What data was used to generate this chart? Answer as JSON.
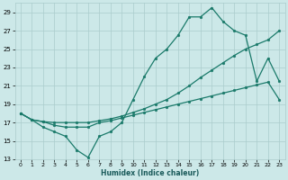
{
  "xlabel": "Humidex (Indice chaleur)",
  "bg_color": "#cce8e8",
  "grid_color": "#aacccc",
  "line_color": "#1a7a6a",
  "xlim": [
    -0.5,
    23.5
  ],
  "ylim": [
    13,
    30
  ],
  "yticks": [
    13,
    15,
    17,
    19,
    21,
    23,
    25,
    27,
    29
  ],
  "xticks": [
    0,
    1,
    2,
    3,
    4,
    5,
    6,
    7,
    8,
    9,
    10,
    11,
    12,
    13,
    14,
    15,
    16,
    17,
    18,
    19,
    20,
    21,
    22,
    23
  ],
  "line_bottom_x": [
    0,
    1,
    2,
    3,
    4,
    5,
    6,
    7,
    8,
    9,
    10,
    11,
    12,
    13,
    14,
    15,
    16,
    17,
    18,
    19,
    20,
    21,
    22,
    23
  ],
  "line_bottom_y": [
    18.0,
    17.3,
    17.1,
    16.7,
    16.5,
    16.5,
    16.5,
    17.0,
    17.2,
    17.5,
    17.8,
    18.1,
    18.4,
    18.7,
    19.0,
    19.3,
    19.6,
    19.9,
    20.2,
    20.5,
    20.8,
    21.1,
    21.4,
    19.5
  ],
  "line_mid_x": [
    0,
    1,
    2,
    3,
    4,
    5,
    6,
    7,
    8,
    9,
    10,
    11,
    12,
    13,
    14,
    15,
    16,
    17,
    18,
    19,
    20,
    21,
    22,
    23
  ],
  "line_mid_y": [
    18.0,
    17.3,
    17.1,
    17.0,
    17.0,
    17.0,
    17.0,
    17.2,
    17.4,
    17.7,
    18.1,
    18.5,
    19.0,
    19.5,
    20.2,
    21.0,
    21.9,
    22.7,
    23.5,
    24.3,
    25.0,
    25.5,
    26.0,
    27.0
  ],
  "line_top_x": [
    0,
    1,
    2,
    3,
    4,
    5,
    6,
    7,
    8,
    9,
    10,
    11,
    12,
    13,
    14,
    15,
    16,
    17,
    18,
    19,
    20,
    21,
    22,
    23
  ],
  "line_top_y": [
    18.0,
    17.3,
    16.5,
    16.0,
    15.5,
    14.0,
    13.2,
    15.5,
    16.0,
    17.0,
    19.5,
    22.0,
    24.0,
    25.0,
    26.5,
    28.5,
    28.5,
    29.5,
    28.0,
    27.0,
    26.5,
    21.5,
    24.0,
    21.5
  ]
}
